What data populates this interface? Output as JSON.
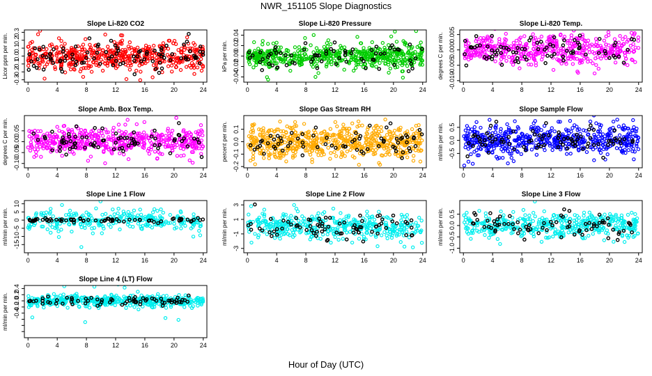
{
  "page": {
    "title": "NWR_151105  Slope Diagnostics",
    "xlabel": "Hour of Day (UTC)"
  },
  "chart_data": [
    {
      "type": "scatter",
      "title": "Slope Li-820 CO2",
      "ylabel": "Licor ppm per min.",
      "color": "#ff0000",
      "xlim": [
        -0.5,
        24.5
      ],
      "ylim": [
        -0.33,
        0.33
      ],
      "yticks": [
        -0.3,
        -0.2,
        -0.1,
        0.0,
        0.1,
        0.2,
        0.3
      ],
      "yticklabels": [
        "-0.3",
        "-0.2",
        "-0.1",
        "0.0",
        "0.1",
        "0.2",
        "0.3"
      ],
      "xticks": [
        0,
        4,
        8,
        12,
        16,
        20,
        24
      ],
      "n_colored": 520,
      "n_black": 95,
      "spread": 0.09,
      "black_spread": 0.1,
      "seed": 11
    },
    {
      "type": "scatter",
      "title": "Slope Li-820 Pressure",
      "ylabel": "kPa per min.",
      "color": "#00cc00",
      "xlim": [
        -0.5,
        24.5
      ],
      "ylim": [
        -0.05,
        0.05
      ],
      "yticks": [
        -0.04,
        -0.02,
        0.0,
        0.02,
        0.04
      ],
      "yticklabels": [
        "-0.04",
        "-0.02",
        "0.00",
        "0.02",
        "0.04"
      ],
      "xticks": [
        0,
        4,
        8,
        12,
        16,
        20,
        24
      ],
      "n_colored": 560,
      "n_black": 70,
      "spread": 0.011,
      "black_spread": 0.014,
      "seed": 23
    },
    {
      "type": "scatter",
      "title": "Slope Li-820 Temp.",
      "ylabel": "degrees C per min.",
      "color": "#ff00ff",
      "xlim": [
        -0.5,
        24.5
      ],
      "ylim": [
        -0.0105,
        0.0065
      ],
      "yticks": [
        -0.01,
        -0.005,
        0.0,
        0.005
      ],
      "yticklabels": [
        "-0.010",
        "-0.005",
        "0.000",
        "0.005"
      ],
      "xticks": [
        0,
        4,
        8,
        12,
        16,
        20,
        24
      ],
      "n_colored": 480,
      "n_black": 80,
      "spread": 0.0024,
      "black_spread": 0.0028,
      "seed": 37
    },
    {
      "type": "scatter",
      "title": "Slope Amb. Box Temp.",
      "ylabel": "degrees C per min.",
      "color": "#ff00ff",
      "xlim": [
        -0.5,
        24.5
      ],
      "ylim": [
        -0.12,
        0.12
      ],
      "yticks": [
        -0.1,
        -0.05,
        0.0,
        0.05
      ],
      "yticklabels": [
        "-0.10",
        "-0.05",
        "0.00",
        "0.05"
      ],
      "xticks": [
        0,
        4,
        8,
        12,
        16,
        20,
        24
      ],
      "n_colored": 520,
      "n_black": 75,
      "spread": 0.03,
      "black_spread": 0.03,
      "seed": 41
    },
    {
      "type": "scatter",
      "title": "Slope Gas Stream RH",
      "ylabel": "percent per min.",
      "color": "#ffaa00",
      "xlim": [
        -0.5,
        24.5
      ],
      "ylim": [
        -0.21,
        0.21
      ],
      "yticks": [
        -0.2,
        -0.1,
        0.0,
        0.1
      ],
      "yticklabels": [
        "-0.2",
        "-0.1",
        "0.0",
        "0.1"
      ],
      "xticks": [
        0,
        4,
        8,
        12,
        16,
        20,
        24
      ],
      "n_colored": 620,
      "n_black": 70,
      "spread": 0.065,
      "black_spread": 0.06,
      "seed": 53
    },
    {
      "type": "scatter",
      "title": "Slope Sample Flow",
      "ylabel": "ml/min per min.",
      "color": "#0000ff",
      "xlim": [
        -0.5,
        24.5
      ],
      "ylim": [
        -1.05,
        0.95
      ],
      "yticks": [
        -0.5,
        0.0,
        0.5
      ],
      "yticklabels": [
        "-0.5",
        "0.0",
        "0.5"
      ],
      "xticks": [
        0,
        4,
        8,
        12,
        16,
        20,
        24
      ],
      "n_colored": 560,
      "n_black": 80,
      "spread": 0.28,
      "black_spread": 0.25,
      "seed": 67
    },
    {
      "type": "scatter",
      "title": "Slope Line 1 Flow",
      "ylabel": "ml/min per min.",
      "color": "#00eeee",
      "xlim": [
        -0.5,
        24.5
      ],
      "ylim": [
        -20,
        12
      ],
      "yticks": [
        -15,
        -10,
        -5,
        0,
        5,
        10
      ],
      "yticklabels": [
        "-15",
        "-10",
        "-5",
        "0",
        "5",
        "10"
      ],
      "xticks": [
        0,
        4,
        8,
        12,
        16,
        20,
        24
      ],
      "n_colored": 300,
      "n_black": 70,
      "spread": 3.2,
      "black_spread": 0.6,
      "seed": 71
    },
    {
      "type": "scatter",
      "title": "Slope Line 2 Flow",
      "ylabel": "ml/min per min.",
      "color": "#00eeee",
      "xlim": [
        -0.5,
        24.5
      ],
      "ylim": [
        -3.6,
        3.6
      ],
      "yticks": [
        -3,
        -1,
        1,
        3
      ],
      "yticklabels": [
        "-3",
        "-1",
        "1",
        "3"
      ],
      "xticks": [
        0,
        4,
        8,
        12,
        16,
        20,
        24
      ],
      "n_colored": 420,
      "n_black": 80,
      "spread": 0.85,
      "black_spread": 0.9,
      "seed": 83
    },
    {
      "type": "scatter",
      "title": "Slope Line 3 Flow",
      "ylabel": "ml/min per min.",
      "color": "#00eeee",
      "xlim": [
        -0.5,
        24.5
      ],
      "ylim": [
        -1.2,
        1.1
      ],
      "yticks": [
        -1.0,
        -0.5,
        0.0,
        0.5
      ],
      "yticklabels": [
        "-1.0",
        "-0.5",
        "0.0",
        "0.5"
      ],
      "xticks": [
        0,
        4,
        8,
        12,
        16,
        20,
        24
      ],
      "n_colored": 420,
      "n_black": 75,
      "spread": 0.28,
      "black_spread": 0.27,
      "seed": 97
    },
    {
      "type": "scatter",
      "title": "Slope Line 4 (LT) Flow",
      "ylabel": "ml/min per min.",
      "color": "#00eeee",
      "xlim": [
        -0.5,
        24.5
      ],
      "ylim": [
        -1.2,
        0.5
      ],
      "yticks": [
        -1.0,
        -0.8,
        -0.6,
        -0.4,
        -0.2,
        0.0,
        0.2,
        0.4
      ],
      "yticklabels": [
        "",
        "",
        "",
        "-0.4",
        "-0.2",
        "0.0",
        "0.2",
        "0.4"
      ],
      "xticks": [
        0,
        4,
        8,
        12,
        16,
        20,
        24
      ],
      "n_colored": 480,
      "n_black": 70,
      "spread": 0.09,
      "black_spread": 0.08,
      "seed": 101
    }
  ]
}
